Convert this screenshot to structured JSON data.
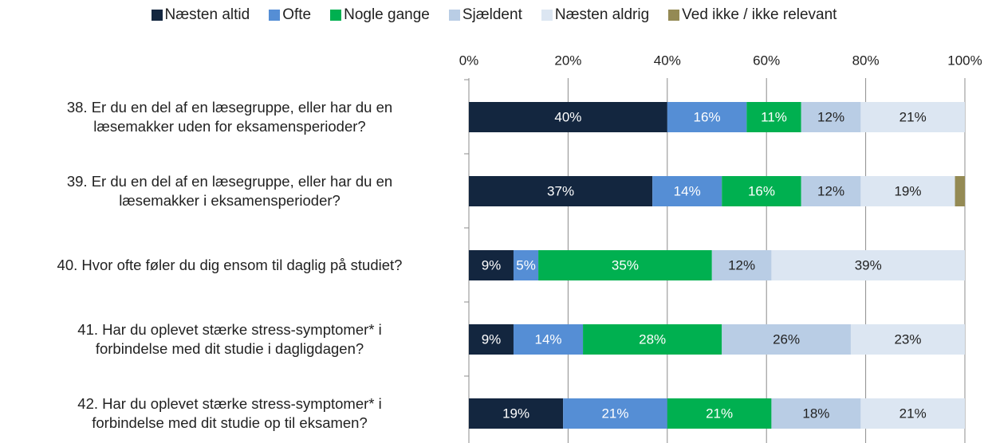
{
  "chart_data": {
    "type": "stacked-bar-horizontal",
    "categories": [
      "38. Er du en del af en læsegruppe, eller har du en\nlæsemakker uden for eksamensperioder?",
      "39. Er du en del af en læsegruppe, eller har du en\nlæsemakker i eksamensperioder?",
      "40. Hvor ofte føler du dig ensom til daglig på studiet?",
      "41. Har du oplevet stærke stress-symptomer* i\nforbindelse med dit studie i dagligdagen?",
      "42. Har du oplevet stærke stress-symptomer* i\nforbindelse med dit studie op til eksamen?"
    ],
    "series": [
      {
        "name": "Næsten altid",
        "color": "#13263f",
        "values": [
          40,
          37,
          9,
          9,
          19
        ],
        "value_labels": [
          "40%",
          "37%",
          "9%",
          "9%",
          "19%"
        ]
      },
      {
        "name": "Ofte",
        "color": "#558ed5",
        "values": [
          16,
          14,
          5,
          14,
          21
        ],
        "value_labels": [
          "16%",
          "14%",
          "5%",
          "14%",
          "21%"
        ]
      },
      {
        "name": "Nogle gange",
        "color": "#00b050",
        "values": [
          11,
          16,
          35,
          28,
          21
        ],
        "value_labels": [
          "11%",
          "16%",
          "35%",
          "28%",
          "21%"
        ]
      },
      {
        "name": "Sjældent",
        "color": "#b9cde5",
        "values": [
          12,
          12,
          12,
          26,
          18
        ],
        "value_labels": [
          "12%",
          "12%",
          "12%",
          "26%",
          "18%"
        ]
      },
      {
        "name": "Næsten aldrig",
        "color": "#dce6f2",
        "values": [
          21,
          19,
          39,
          23,
          21
        ],
        "value_labels": [
          "21%",
          "19%",
          "39%",
          "23%",
          "21%"
        ]
      },
      {
        "name": "Ved ikke / ikke relevant",
        "color": "#948a54",
        "values": [
          0,
          2,
          0,
          0,
          0
        ],
        "value_labels": [
          null,
          null,
          null,
          null,
          null
        ]
      }
    ],
    "xlim": [
      0,
      100
    ],
    "xticks": [
      {
        "value": 0,
        "label": "0%"
      },
      {
        "value": 20,
        "label": "20%"
      },
      {
        "value": 40,
        "label": "40%"
      },
      {
        "value": 60,
        "label": "60%"
      },
      {
        "value": 80,
        "label": "80%"
      },
      {
        "value": 100,
        "label": "100%"
      }
    ],
    "grid": true,
    "legend": "top"
  }
}
